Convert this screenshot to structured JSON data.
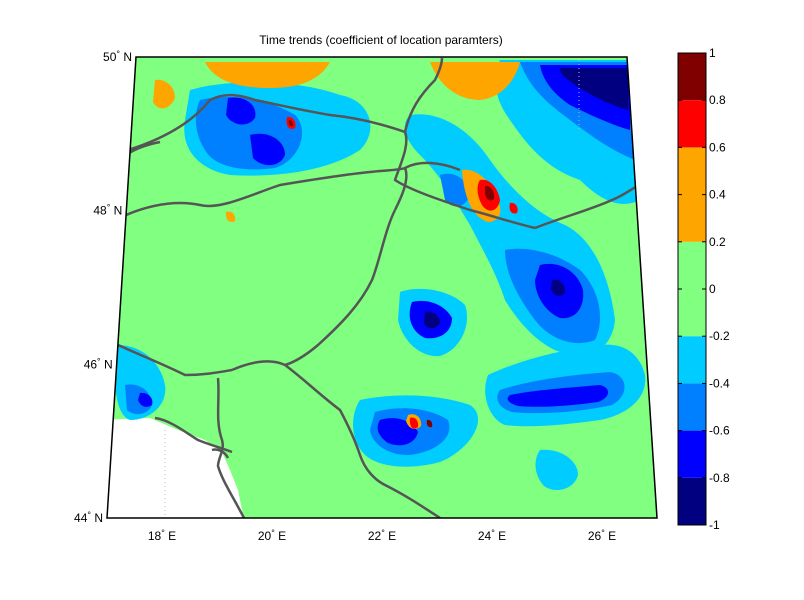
{
  "figure": {
    "title": "Time trends (coefficient of location paramters)"
  },
  "map": {
    "latitude_ticks": [
      {
        "lat": 50,
        "deg": "50",
        "hemi": "N"
      },
      {
        "lat": 48,
        "deg": "48",
        "hemi": "N"
      },
      {
        "lat": 46,
        "deg": "46",
        "hemi": "N"
      },
      {
        "lat": 44,
        "deg": "44",
        "hemi": "N"
      }
    ],
    "longitude_ticks": [
      {
        "lon": 18,
        "deg": "18",
        "hemi": "E"
      },
      {
        "lon": 20,
        "deg": "20",
        "hemi": "E"
      },
      {
        "lon": 22,
        "deg": "22",
        "hemi": "E"
      },
      {
        "lon": 24,
        "deg": "24",
        "hemi": "E"
      },
      {
        "lon": 26,
        "deg": "26",
        "hemi": "E"
      }
    ],
    "extent": {
      "lon_min": 17,
      "lon_max": 27,
      "lat_min": 44,
      "lat_max": 50
    },
    "background_level_color": "#80ff80",
    "missing_color": "#ffffff",
    "border_color": "#555555"
  },
  "colorbar": {
    "range": [
      -1,
      1
    ],
    "tick_labels": [
      "1",
      "0.8",
      "0.6",
      "0.4",
      "0.2",
      "0",
      "-0.2",
      "-0.4",
      "-0.6",
      "-0.8",
      "-1"
    ],
    "bands": [
      {
        "from": -1.0,
        "to": -0.8,
        "color": "#000080"
      },
      {
        "from": -0.8,
        "to": -0.6,
        "color": "#0000ff"
      },
      {
        "from": -0.6,
        "to": -0.4,
        "color": "#0080ff"
      },
      {
        "from": -0.4,
        "to": -0.2,
        "color": "#00ccff"
      },
      {
        "from": -0.2,
        "to": 0.2,
        "color": "#80ff80"
      },
      {
        "from": 0.2,
        "to": 0.6,
        "color": "#ffa500"
      },
      {
        "from": 0.6,
        "to": 0.8,
        "color": "#ff0000"
      },
      {
        "from": 0.8,
        "to": 1.0,
        "color": "#800000"
      }
    ]
  }
}
